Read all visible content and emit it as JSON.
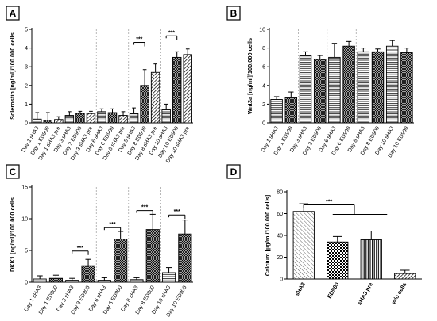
{
  "figure_type": "bar charts with error bars",
  "chart_data": [
    {
      "type": "bar",
      "panel_label": "A",
      "ylabel": "Sclerostin [ng/ml]/100.000 cells",
      "ylim": [
        0,
        5
      ],
      "yticks": [
        0,
        1,
        2,
        3,
        4,
        5
      ],
      "groups": 5,
      "categories": [
        "Day 1 sHA3",
        "Day 1 ED900",
        "Day 1 sHA3 pre",
        "Day 3 sHA3",
        "Day 3 ED900",
        "Day 3 sHA3 pre",
        "Day 6 sHA3",
        "Day 6 ED900",
        "Day 6 sHA3 pre",
        "Day 8 sHA3",
        "Day 8 ED900",
        "Day 8 sHA3 pre",
        "Day 10 sHA3",
        "Day 10 ED900",
        "Day 10 sHA3 pre"
      ],
      "values": [
        0.2,
        0.15,
        0.18,
        0.4,
        0.5,
        0.5,
        0.6,
        0.55,
        0.4,
        0.5,
        2.0,
        2.7,
        0.7,
        3.5,
        3.65
      ],
      "errors": [
        0.35,
        0.4,
        0.15,
        0.2,
        0.12,
        0.12,
        0.15,
        0.2,
        0.2,
        0.3,
        0.85,
        0.45,
        0.3,
        0.3,
        0.3
      ],
      "patterns": [
        "horizontal",
        "crosshatch",
        "diagonal",
        "horizontal",
        "crosshatch",
        "diagonal",
        "horizontal",
        "crosshatch",
        "diagonal",
        "horizontal",
        "crosshatch",
        "diagonal",
        "horizontal",
        "crosshatch",
        "diagonal"
      ],
      "significance": [
        {
          "from": 9,
          "to": 10,
          "label": "***",
          "y": 4.3
        },
        {
          "from": 12,
          "to": 13,
          "label": "***",
          "y": 4.65
        }
      ]
    },
    {
      "type": "bar",
      "panel_label": "B",
      "ylabel": "Wnt3a [ng/ml]/100.000 cells",
      "ylim": [
        0,
        10
      ],
      "yticks": [
        0,
        2,
        4,
        6,
        8,
        10
      ],
      "groups": 5,
      "categories": [
        "Day 1 sHA3",
        "Day 1 ED900",
        "Day 3 sHA3",
        "Day 3 ED900",
        "Day 6 sHA3",
        "Day 6 ED900",
        "Day 8 sHA3",
        "Day 8 ED900",
        "Day 10 sHA3",
        "Day 10 ED900"
      ],
      "values": [
        2.5,
        2.7,
        7.2,
        6.8,
        7.0,
        8.2,
        7.6,
        7.6,
        8.2,
        7.5
      ],
      "errors": [
        0.3,
        0.6,
        0.4,
        0.4,
        1.5,
        0.5,
        0.4,
        0.3,
        0.6,
        0.5
      ],
      "patterns": [
        "horizontal",
        "crosshatch",
        "horizontal",
        "crosshatch",
        "horizontal",
        "crosshatch",
        "horizontal",
        "crosshatch",
        "horizontal",
        "crosshatch"
      ],
      "significance": []
    },
    {
      "type": "bar",
      "panel_label": "C",
      "ylabel": "DKK1 [ng/ml]/100.000 cells",
      "ylim": [
        0,
        15
      ],
      "yticks": [
        0,
        5,
        10,
        15
      ],
      "groups": 5,
      "categories": [
        "Day 1 sHA3",
        "Day 1 ED900",
        "Day 3 sHA3",
        "Day 3 ED900",
        "Day 6 sHA3",
        "Day 6 ED900",
        "Day 8 sHA3",
        "Day 8 ED900",
        "Day 10 sHA3",
        "Day 10 ED900"
      ],
      "values": [
        0.5,
        0.6,
        0.3,
        2.6,
        0.3,
        6.8,
        0.4,
        8.3,
        1.5,
        7.6
      ],
      "errors": [
        0.5,
        0.5,
        0.3,
        1.0,
        0.4,
        1.2,
        0.3,
        2.4,
        0.8,
        2.2
      ],
      "patterns": [
        "horizontal",
        "crosshatch",
        "horizontal",
        "crosshatch",
        "horizontal",
        "crosshatch",
        "horizontal",
        "crosshatch",
        "horizontal",
        "crosshatch"
      ],
      "significance": [
        {
          "from": 2,
          "to": 3,
          "label": "***",
          "y": 4.9
        },
        {
          "from": 4,
          "to": 5,
          "label": "***",
          "y": 8.6
        },
        {
          "from": 6,
          "to": 7,
          "label": "***",
          "y": 11.3
        },
        {
          "from": 8,
          "to": 9,
          "label": "***",
          "y": 10.6
        }
      ]
    },
    {
      "type": "bar",
      "panel_label": "D",
      "ylabel": "Calcium [µg/ml/100.000 cells]",
      "ylim": [
        0,
        80
      ],
      "yticks": [
        0,
        20,
        40,
        60,
        80
      ],
      "groups": 1,
      "categories": [
        "sHA3",
        "ED900",
        "sHA3 pre",
        "w/o cells"
      ],
      "values": [
        62,
        34,
        36,
        5
      ],
      "errors": [
        7,
        5,
        8,
        3
      ],
      "patterns": [
        "diagonal-light",
        "checker",
        "vertical",
        "diagonal"
      ],
      "significance": [
        {
          "from": 0,
          "to": 2,
          "label": "***",
          "y": 68,
          "type": "bracket-multi"
        }
      ]
    }
  ]
}
